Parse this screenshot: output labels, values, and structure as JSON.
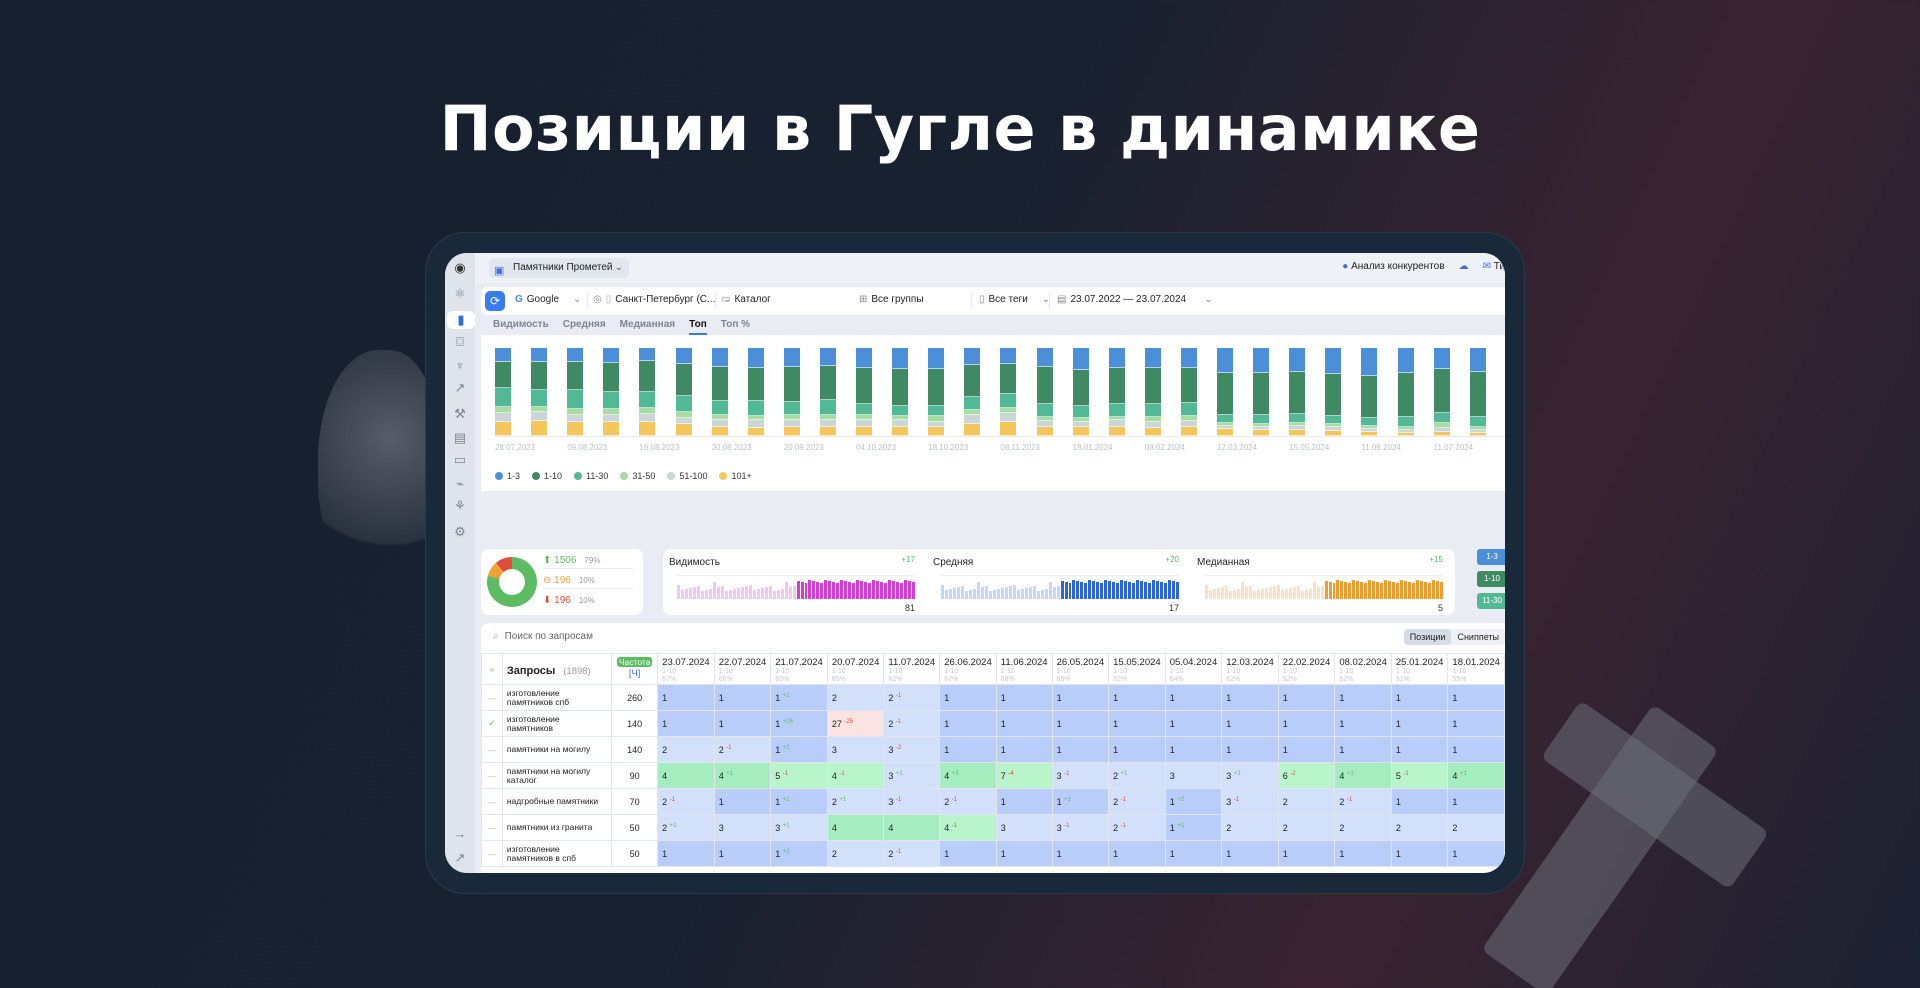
{
  "headline": "Позиции в Гугле в динамике",
  "app": {
    "project": "Памятники Прометей",
    "top_right": {
      "competitors": "Анализ конкурентов",
      "tickets_partial": "Ти"
    },
    "filters": {
      "engine": "Google",
      "region": "Санкт-Петербург (С...",
      "catalog": "Каталог",
      "groups": "Все группы",
      "tags": "Все теги",
      "date_range": "23.07.2022 — 23.07.2024"
    },
    "tabs": [
      {
        "label": "Видимость"
      },
      {
        "label": "Средняя"
      },
      {
        "label": "Медианная"
      },
      {
        "label": "Топ",
        "active": true
      },
      {
        "label": "Топ %"
      }
    ],
    "sidebar_icons": [
      "logo-icon",
      "atom-icon",
      "bar-chart-icon",
      "scan-icon",
      "trophy-icon",
      "trend-icon",
      "hammer-icon",
      "cards-icon",
      "inbox-icon",
      "satellite-icon",
      "sitemap-icon",
      "gear-icon",
      "arrow-right-icon",
      "external-link-icon"
    ],
    "summary": {
      "up": {
        "count": "1506",
        "pct": "79%"
      },
      "same": {
        "count": "196",
        "pct": "10%"
      },
      "down": {
        "count": "196",
        "pct": "10%"
      }
    },
    "mini_charts": [
      {
        "title": "Видимость",
        "delta": "+17",
        "value": "81",
        "color": "#d63bd3",
        "light": "#f4c5f1"
      },
      {
        "title": "Средняя",
        "delta": "+20",
        "value": "17",
        "color": "#2b63e0",
        "light": "#c4d6fb"
      },
      {
        "title": "Медианная",
        "delta": "+15",
        "value": "5",
        "color": "#f29b30",
        "light": "#fbe0c2"
      }
    ],
    "top_badges": [
      {
        "label": "1-3",
        "color": "#4a8fd8"
      },
      {
        "label": "1-10",
        "color": "#3f8a63"
      },
      {
        "label": "11-30",
        "color": "#52b997"
      }
    ],
    "table": {
      "search_placeholder": "Поиск по запросам",
      "segment": [
        "Позиции",
        "Сниппеты"
      ],
      "queries_label": "Запросы",
      "queries_count": "(1898)",
      "freq_label": "Частота",
      "freq_sub": "[Ч]",
      "dates": [
        {
          "d": "23.07.2024",
          "top": "1-10",
          "pct": "67%"
        },
        {
          "d": "22.07.2024",
          "top": "1-10",
          "pct": "66%"
        },
        {
          "d": "21.07.2024",
          "top": "1-10",
          "pct": "65%"
        },
        {
          "d": "20.07.2024",
          "top": "1-10",
          "pct": "65%"
        },
        {
          "d": "11.07.2024",
          "top": "1-10",
          "pct": "62%"
        },
        {
          "d": "26.06.2024",
          "top": "1-10",
          "pct": "67%"
        },
        {
          "d": "11.06.2024",
          "top": "1-10",
          "pct": "68%"
        },
        {
          "d": "26.05.2024",
          "top": "1-10",
          "pct": "65%"
        },
        {
          "d": "15.05.2024",
          "top": "1-10",
          "pct": "62%"
        },
        {
          "d": "05.04.2024",
          "top": "1-10",
          "pct": "64%"
        },
        {
          "d": "12.03.2024",
          "top": "1-10",
          "pct": "62%"
        },
        {
          "d": "22.02.2024",
          "top": "1-10",
          "pct": "52%"
        },
        {
          "d": "08.02.2024",
          "top": "1-10",
          "pct": "52%"
        },
        {
          "d": "25.01.2024",
          "top": "1-10",
          "pct": "51%"
        },
        {
          "d": "18.01.2024",
          "top": "1-10",
          "pct": "55%"
        }
      ],
      "rows": [
        {
          "q": "изготовление памятников спб",
          "f": "260",
          "mark": "—",
          "cells": [
            [
              "1",
              "",
              ""
            ],
            [
              "1",
              "",
              ""
            ],
            [
              "1",
              "+1",
              "up"
            ],
            [
              "2",
              "",
              ""
            ],
            [
              "2",
              "-1",
              "dn"
            ],
            [
              "1",
              "",
              ""
            ],
            [
              "1",
              "",
              ""
            ],
            [
              "1",
              "",
              ""
            ],
            [
              "1",
              "",
              ""
            ],
            [
              "1",
              "",
              ""
            ],
            [
              "1",
              "",
              ""
            ],
            [
              "1",
              "",
              ""
            ],
            [
              "1",
              "",
              ""
            ],
            [
              "1",
              "",
              ""
            ],
            [
              "1",
              "",
              ""
            ]
          ]
        },
        {
          "q": "изготовление памятников",
          "f": "140",
          "mark": "✓",
          "cells": [
            [
              "1",
              "",
              ""
            ],
            [
              "1",
              "",
              ""
            ],
            [
              "1",
              "+26",
              "up"
            ],
            [
              "27",
              "-25",
              "dn"
            ],
            [
              "2",
              "-1",
              "dn"
            ],
            [
              "1",
              "",
              ""
            ],
            [
              "1",
              "",
              ""
            ],
            [
              "1",
              "",
              ""
            ],
            [
              "1",
              "",
              ""
            ],
            [
              "1",
              "",
              ""
            ],
            [
              "1",
              "",
              ""
            ],
            [
              "1",
              "",
              ""
            ],
            [
              "1",
              "",
              ""
            ],
            [
              "1",
              "",
              ""
            ],
            [
              "1",
              "",
              ""
            ]
          ]
        },
        {
          "q": "памятники на могилу",
          "f": "140",
          "mark": "—",
          "cells": [
            [
              "2",
              "",
              ""
            ],
            [
              "2",
              "-1",
              "dn"
            ],
            [
              "1",
              "+2",
              "up"
            ],
            [
              "3",
              "",
              ""
            ],
            [
              "3",
              "-2",
              "dn"
            ],
            [
              "1",
              "",
              ""
            ],
            [
              "1",
              "",
              ""
            ],
            [
              "1",
              "",
              ""
            ],
            [
              "1",
              "",
              ""
            ],
            [
              "1",
              "",
              ""
            ],
            [
              "1",
              "",
              ""
            ],
            [
              "1",
              "",
              ""
            ],
            [
              "1",
              "",
              ""
            ],
            [
              "1",
              "",
              ""
            ],
            [
              "1",
              "",
              ""
            ]
          ]
        },
        {
          "q": "памятники на могилу каталог",
          "f": "90",
          "mark": "—",
          "cells": [
            [
              "4",
              "",
              ""
            ],
            [
              "4",
              "+1",
              "up"
            ],
            [
              "5",
              "-1",
              "dn"
            ],
            [
              "4",
              "-1",
              "dn"
            ],
            [
              "3",
              "+1",
              "up"
            ],
            [
              "4",
              "+3",
              "up"
            ],
            [
              "7",
              "-4",
              "dn"
            ],
            [
              "3",
              "-1",
              "dn"
            ],
            [
              "2",
              "+1",
              "up"
            ],
            [
              "3",
              "",
              ""
            ],
            [
              "3",
              "+3",
              "up"
            ],
            [
              "6",
              "-2",
              "dn"
            ],
            [
              "4",
              "+1",
              "up"
            ],
            [
              "5",
              "-1",
              "dn"
            ],
            [
              "4",
              "+1",
              "up"
            ]
          ]
        },
        {
          "q": "надгробные памятники",
          "f": "70",
          "mark": "—",
          "cells": [
            [
              "2",
              "-1",
              "dn"
            ],
            [
              "1",
              "",
              ""
            ],
            [
              "1",
              "+1",
              "up"
            ],
            [
              "2",
              "+1",
              "up"
            ],
            [
              "3",
              "-1",
              "dn"
            ],
            [
              "2",
              "-1",
              "dn"
            ],
            [
              "1",
              "",
              ""
            ],
            [
              "1",
              "+1",
              "up"
            ],
            [
              "2",
              "-1",
              "dn"
            ],
            [
              "1",
              "+2",
              "up"
            ],
            [
              "3",
              "-1",
              "dn"
            ],
            [
              "2",
              "",
              ""
            ],
            [
              "2",
              "-1",
              "dn"
            ],
            [
              "1",
              "",
              ""
            ],
            [
              "1",
              "",
              ""
            ]
          ]
        },
        {
          "q": "памятники из гранита",
          "f": "50",
          "mark": "—",
          "cells": [
            [
              "2",
              "+1",
              "up"
            ],
            [
              "3",
              "",
              ""
            ],
            [
              "3",
              "+1",
              "up"
            ],
            [
              "4",
              "",
              ""
            ],
            [
              "4",
              "",
              ""
            ],
            [
              "4",
              "-1",
              "dn"
            ],
            [
              "3",
              "",
              ""
            ],
            [
              "3",
              "-1",
              "dn"
            ],
            [
              "2",
              "-1",
              "dn"
            ],
            [
              "1",
              "+1",
              "up"
            ],
            [
              "2",
              "",
              ""
            ],
            [
              "2",
              "",
              ""
            ],
            [
              "2",
              "",
              ""
            ],
            [
              "2",
              "",
              ""
            ],
            [
              "2",
              "",
              ""
            ]
          ]
        },
        {
          "q": "изготовление памятников в спб",
          "f": "50",
          "mark": "—",
          "cells": [
            [
              "1",
              "",
              ""
            ],
            [
              "1",
              "",
              ""
            ],
            [
              "1",
              "+1",
              "up"
            ],
            [
              "2",
              "",
              ""
            ],
            [
              "2",
              "-1",
              "dn"
            ],
            [
              "1",
              "",
              ""
            ],
            [
              "1",
              "",
              ""
            ],
            [
              "1",
              "",
              ""
            ],
            [
              "1",
              "",
              ""
            ],
            [
              "1",
              "",
              ""
            ],
            [
              "1",
              "",
              ""
            ],
            [
              "1",
              "",
              ""
            ],
            [
              "1",
              "",
              ""
            ],
            [
              "1",
              "",
              ""
            ],
            [
              "1",
              "",
              ""
            ]
          ]
        }
      ]
    }
  },
  "chart_data": {
    "type": "bar",
    "stacked": true,
    "title": "Топ",
    "categories": [
      "28.07.2023",
      "09.08.2023",
      "16.08.2023",
      "30.08.2023",
      "20.09.2023",
      "04.10.2023",
      "18.10.2023",
      "08.11.2023",
      "18.01.2024",
      "08.02.2024",
      "12.03.2024",
      "15.05.2024",
      "11.06.2024",
      "11.07.2024"
    ],
    "legend": [
      "1-3",
      "1-10",
      "11-30",
      "31-50",
      "51-100",
      "101+"
    ],
    "colors": {
      "1-3": "#4a8fd8",
      "1-10": "#3f8a63",
      "11-30": "#52b997",
      "31-50": "#a9dca0",
      "51-100": "#cbd6d8",
      "101+": "#f3c75c"
    },
    "bars": [
      [
        15,
        30,
        21,
        6,
        10,
        16
      ],
      [
        15,
        31,
        19,
        6,
        9,
        17
      ],
      [
        15,
        32,
        21,
        7,
        7,
        16
      ],
      [
        17,
        33,
        19,
        6,
        8,
        16
      ],
      [
        15,
        34,
        19,
        6,
        9,
        16
      ],
      [
        18,
        35,
        18,
        6,
        7,
        13
      ],
      [
        21,
        38,
        16,
        5,
        8,
        10
      ],
      [
        22,
        38,
        16,
        5,
        9,
        9
      ],
      [
        21,
        39,
        15,
        5,
        8,
        10
      ],
      [
        20,
        37,
        16,
        5,
        8,
        10
      ],
      [
        22,
        40,
        12,
        5,
        8,
        10
      ],
      [
        23,
        40,
        11,
        5,
        7,
        10
      ],
      [
        23,
        41,
        11,
        6,
        6,
        10
      ],
      [
        18,
        35,
        15,
        5,
        10,
        13
      ],
      [
        18,
        34,
        16,
        5,
        10,
        16
      ],
      [
        21,
        40,
        14,
        5,
        6,
        10
      ],
      [
        24,
        40,
        13,
        4,
        6,
        10
      ],
      [
        22,
        39,
        14,
        4,
        7,
        10
      ],
      [
        22,
        40,
        14,
        5,
        7,
        9
      ],
      [
        22,
        39,
        14,
        5,
        7,
        10
      ],
      [
        27,
        44,
        9,
        3,
        4,
        7
      ],
      [
        27,
        45,
        9,
        3,
        4,
        6
      ],
      [
        26,
        45,
        10,
        3,
        5,
        6
      ],
      [
        28,
        45,
        8,
        3,
        5,
        5
      ],
      [
        30,
        46,
        8,
        3,
        4,
        4
      ],
      [
        27,
        47,
        11,
        4,
        3,
        3
      ],
      [
        23,
        47,
        11,
        5,
        5,
        4
      ],
      [
        26,
        48,
        10,
        4,
        3,
        3
      ]
    ],
    "ylabel": "",
    "xlabel": ""
  }
}
